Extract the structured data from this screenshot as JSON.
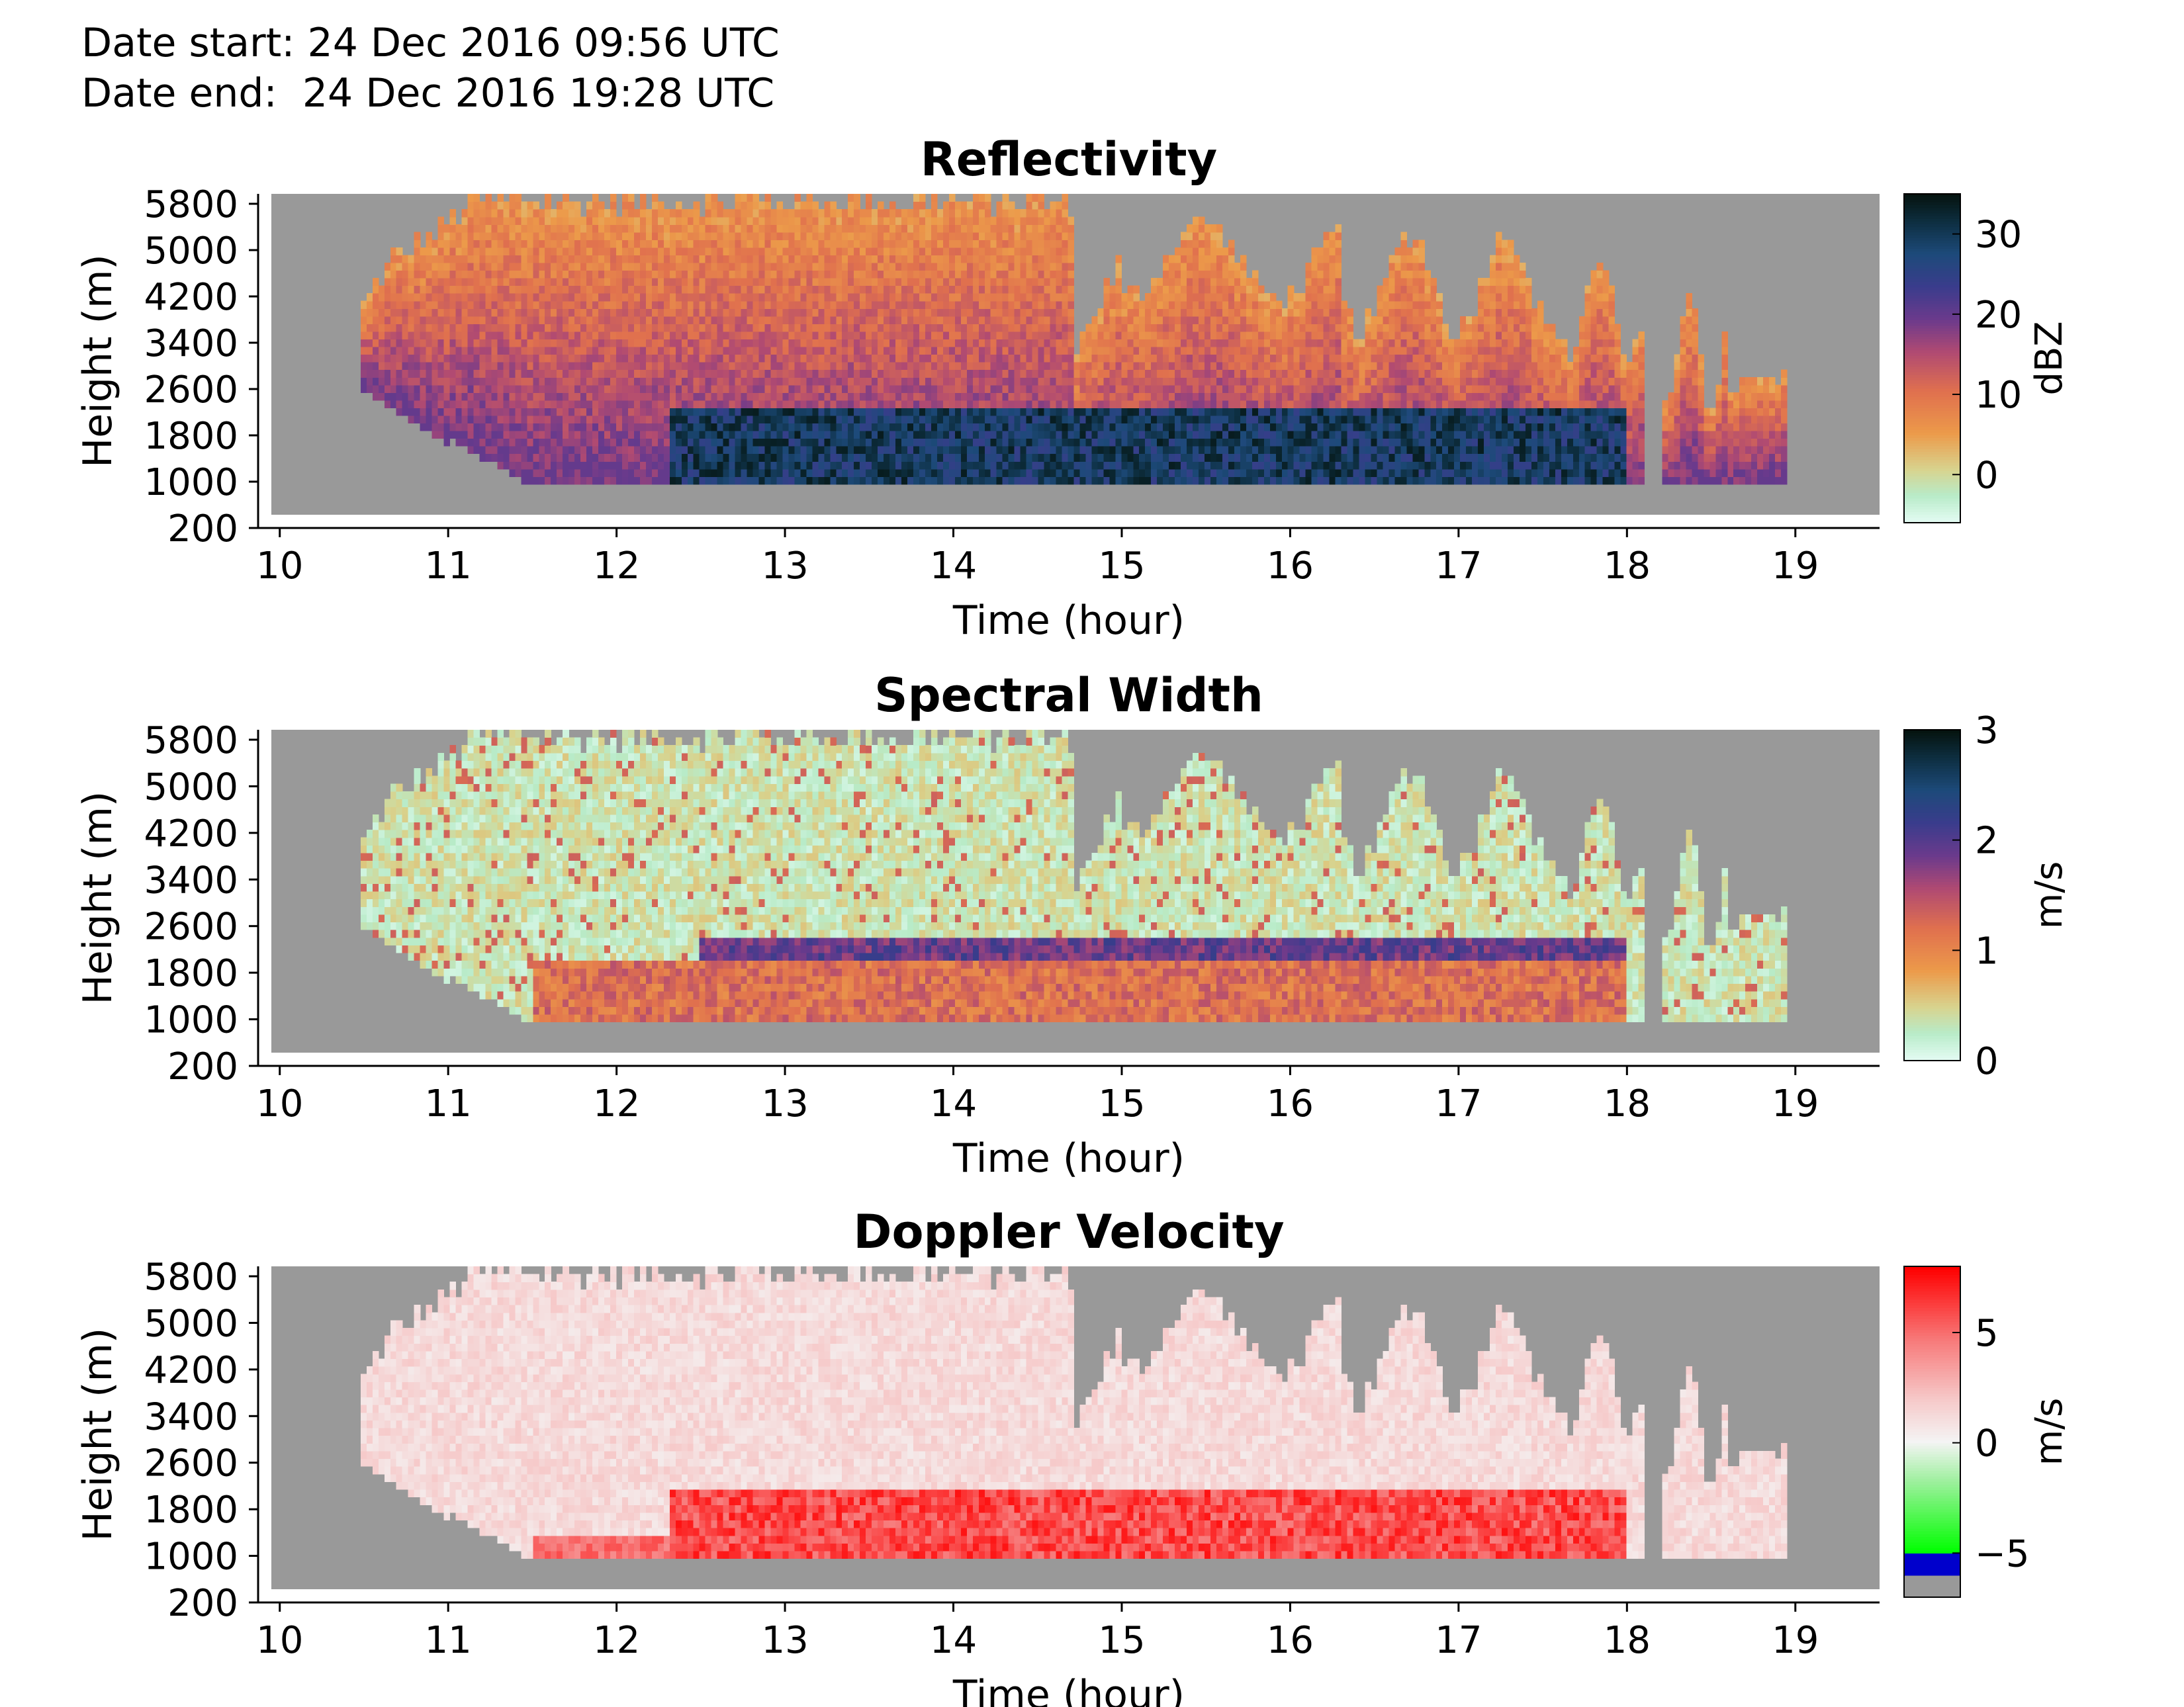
{
  "header": {
    "date_start": "Date start: 24 Dec 2016 09:56 UTC",
    "date_end": "Date end:  24 Dec 2016 19:28 UTC"
  },
  "chart_data": [
    {
      "type": "heatmap",
      "title": "Reflectivity",
      "xlabel": "Time (hour)",
      "ylabel": "Height (m)",
      "colorbar_label": "dBZ",
      "xlim": [
        9.95,
        19.5
      ],
      "ylim": [
        0,
        6000
      ],
      "xticks": [
        10,
        11,
        12,
        13,
        14,
        15,
        16,
        17,
        18,
        19
      ],
      "yticks": [
        200,
        1000,
        1800,
        2600,
        3400,
        4200,
        5000,
        5800
      ],
      "clim": [
        -6,
        35
      ],
      "cticks": [
        0,
        10,
        20,
        30
      ],
      "colormap": [
        [
          0,
          "#e3fbf2"
        ],
        [
          0.08,
          "#b8ebc8"
        ],
        [
          0.16,
          "#d8d38e"
        ],
        [
          0.27,
          "#ec9a4a"
        ],
        [
          0.4,
          "#e0704e"
        ],
        [
          0.52,
          "#b04a72"
        ],
        [
          0.62,
          "#6b3a8c"
        ],
        [
          0.72,
          "#3a3c8c"
        ],
        [
          0.82,
          "#1d4a7a"
        ],
        [
          0.92,
          "#0d2e40"
        ],
        [
          1,
          "#051410"
        ]
      ],
      "background_color": "#999999",
      "data_start_hour": 10.48,
      "data_end_hour": 18.95,
      "upper_layer_range_dbz": [
        3,
        20
      ],
      "lower_layer": {
        "start_hour": 12.3,
        "end_hour": 18.0,
        "top_m": 2000,
        "range_dbz": [
          20,
          34
        ]
      }
    },
    {
      "type": "heatmap",
      "title": "Spectral Width",
      "xlabel": "Time (hour)",
      "ylabel": "Height (m)",
      "colorbar_label": "m/s",
      "xlim": [
        9.95,
        19.5
      ],
      "ylim": [
        0,
        6000
      ],
      "xticks": [
        10,
        11,
        12,
        13,
        14,
        15,
        16,
        17,
        18,
        19
      ],
      "yticks": [
        200,
        1000,
        1800,
        2600,
        3400,
        4200,
        5000,
        5800
      ],
      "clim": [
        0,
        3
      ],
      "cticks": [
        0,
        1,
        2,
        3
      ],
      "colormap": [
        [
          0,
          "#e3fbf2"
        ],
        [
          0.08,
          "#b8ebc8"
        ],
        [
          0.16,
          "#d8d38e"
        ],
        [
          0.27,
          "#ec9a4a"
        ],
        [
          0.4,
          "#e0704e"
        ],
        [
          0.52,
          "#b04a72"
        ],
        [
          0.62,
          "#6b3a8c"
        ],
        [
          0.72,
          "#3a3c8c"
        ],
        [
          0.82,
          "#1d4a7a"
        ],
        [
          0.92,
          "#0d2e40"
        ],
        [
          1,
          "#051410"
        ]
      ],
      "background_color": "#999999",
      "upper_layer_range_ms": [
        0.1,
        0.6
      ],
      "melting_band": {
        "start_hour": 12.5,
        "end_hour": 18.0,
        "height_m": [
          1700,
          2200
        ],
        "range_ms": [
          1.6,
          2.2
        ]
      },
      "lower_layer_range_ms": [
        0.9,
        1.5
      ]
    },
    {
      "type": "heatmap",
      "title": "Doppler Velocity",
      "xlabel": "Time (hour)",
      "ylabel": "Height (m)",
      "colorbar_label": "m/s",
      "xlim": [
        9.95,
        19.5
      ],
      "ylim": [
        0,
        6000
      ],
      "xticks": [
        10,
        11,
        12,
        13,
        14,
        15,
        16,
        17,
        18,
        19
      ],
      "yticks": [
        200,
        1000,
        1800,
        2600,
        3400,
        4200,
        5000,
        5800
      ],
      "clim": [
        -7,
        8
      ],
      "cticks": [
        -5,
        0,
        5
      ],
      "colormap": [
        [
          0,
          "#999999"
        ],
        [
          0.0666,
          "#999999"
        ],
        [
          0.067,
          "#0000cc"
        ],
        [
          0.133,
          "#0000cc"
        ],
        [
          0.134,
          "#00ff00"
        ],
        [
          0.35,
          "#9ef09e"
        ],
        [
          0.47,
          "#f4f4f4"
        ],
        [
          0.6,
          "#f6c9c9"
        ],
        [
          0.78,
          "#f77a7a"
        ],
        [
          1,
          "#ff0000"
        ]
      ],
      "background_color": "#999999",
      "upper_layer_range_ms": [
        0.5,
        2
      ],
      "lower_layer": {
        "start_hour": 12.3,
        "end_hour": 18.0,
        "top_m": 1900,
        "range_ms": [
          4.5,
          7.5
        ]
      }
    }
  ]
}
